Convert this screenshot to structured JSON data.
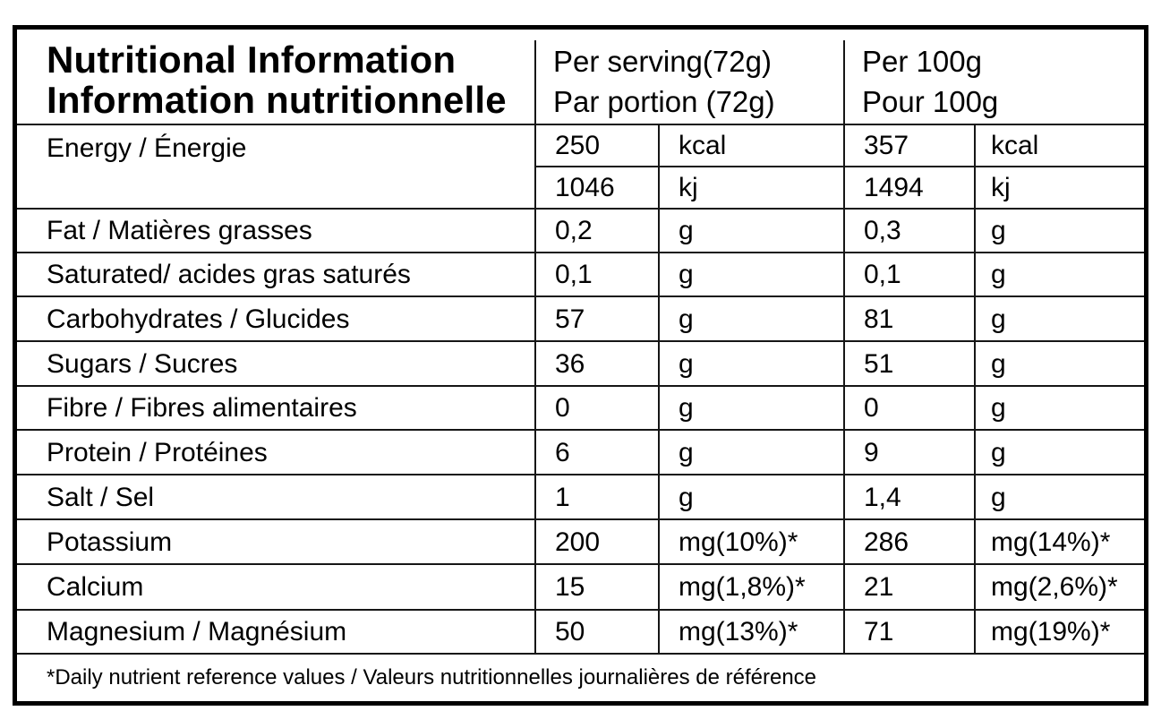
{
  "page": {
    "background": "#ffffff",
    "outer_border_color": "#000000",
    "rule_color": "#161616"
  },
  "table": {
    "title_line1": "Nutritional Information",
    "title_line2": "Information nutritionnelle",
    "columns": {
      "serving_line1": "Per serving(72g)",
      "serving_line2": "Par portion (72g)",
      "per100_line1": "Per 100g",
      "per100_line2": "Pour 100g"
    },
    "energy": {
      "label": "Energy / Énergie",
      "sub_rows": [
        {
          "serving_value": "250",
          "serving_unit": "kcal",
          "per100_value": "357",
          "per100_unit": "kcal"
        },
        {
          "serving_value": "1046",
          "serving_unit": "kj",
          "per100_value": "1494",
          "per100_unit": "kj"
        }
      ]
    },
    "rows": [
      {
        "label": "Fat / Matières grasses",
        "serving_value": "0,2",
        "serving_unit": "g",
        "per100_value": "0,3",
        "per100_unit": "g"
      },
      {
        "label": "Saturated/ acides gras saturés",
        "serving_value": "0,1",
        "serving_unit": "g",
        "per100_value": "0,1",
        "per100_unit": "g"
      },
      {
        "label": "Carbohydrates / Glucides",
        "serving_value": "57",
        "serving_unit": "g",
        "per100_value": "81",
        "per100_unit": "g"
      },
      {
        "label": "Sugars / Sucres",
        "serving_value": "36",
        "serving_unit": "g",
        "per100_value": "51",
        "per100_unit": "g"
      },
      {
        "label": "Fibre / Fibres alimentaires",
        "serving_value": "0",
        "serving_unit": "g",
        "per100_value": "0",
        "per100_unit": "g"
      },
      {
        "label": "Protein / Protéines",
        "serving_value": "6",
        "serving_unit": "g",
        "per100_value": "9",
        "per100_unit": "g"
      },
      {
        "label": "Salt / Sel",
        "serving_value": "1",
        "serving_unit": "g",
        "per100_value": "1,4",
        "per100_unit": "g"
      },
      {
        "label": "Potassium",
        "serving_value": "200",
        "serving_unit": "mg(10%)*",
        "per100_value": "286",
        "per100_unit": "mg(14%)*"
      },
      {
        "label": "Calcium",
        "serving_value": "15",
        "serving_unit": "mg(1,8%)*",
        "per100_value": "21",
        "per100_unit": "mg(2,6%)*"
      },
      {
        "label": "Magnesium / Magnésium",
        "serving_value": "50",
        "serving_unit": "mg(13%)*",
        "per100_value": "71",
        "per100_unit": "mg(19%)*"
      }
    ],
    "footnote": "*Daily nutrient reference values / Valeurs nutritionnelles journalières de référence"
  }
}
